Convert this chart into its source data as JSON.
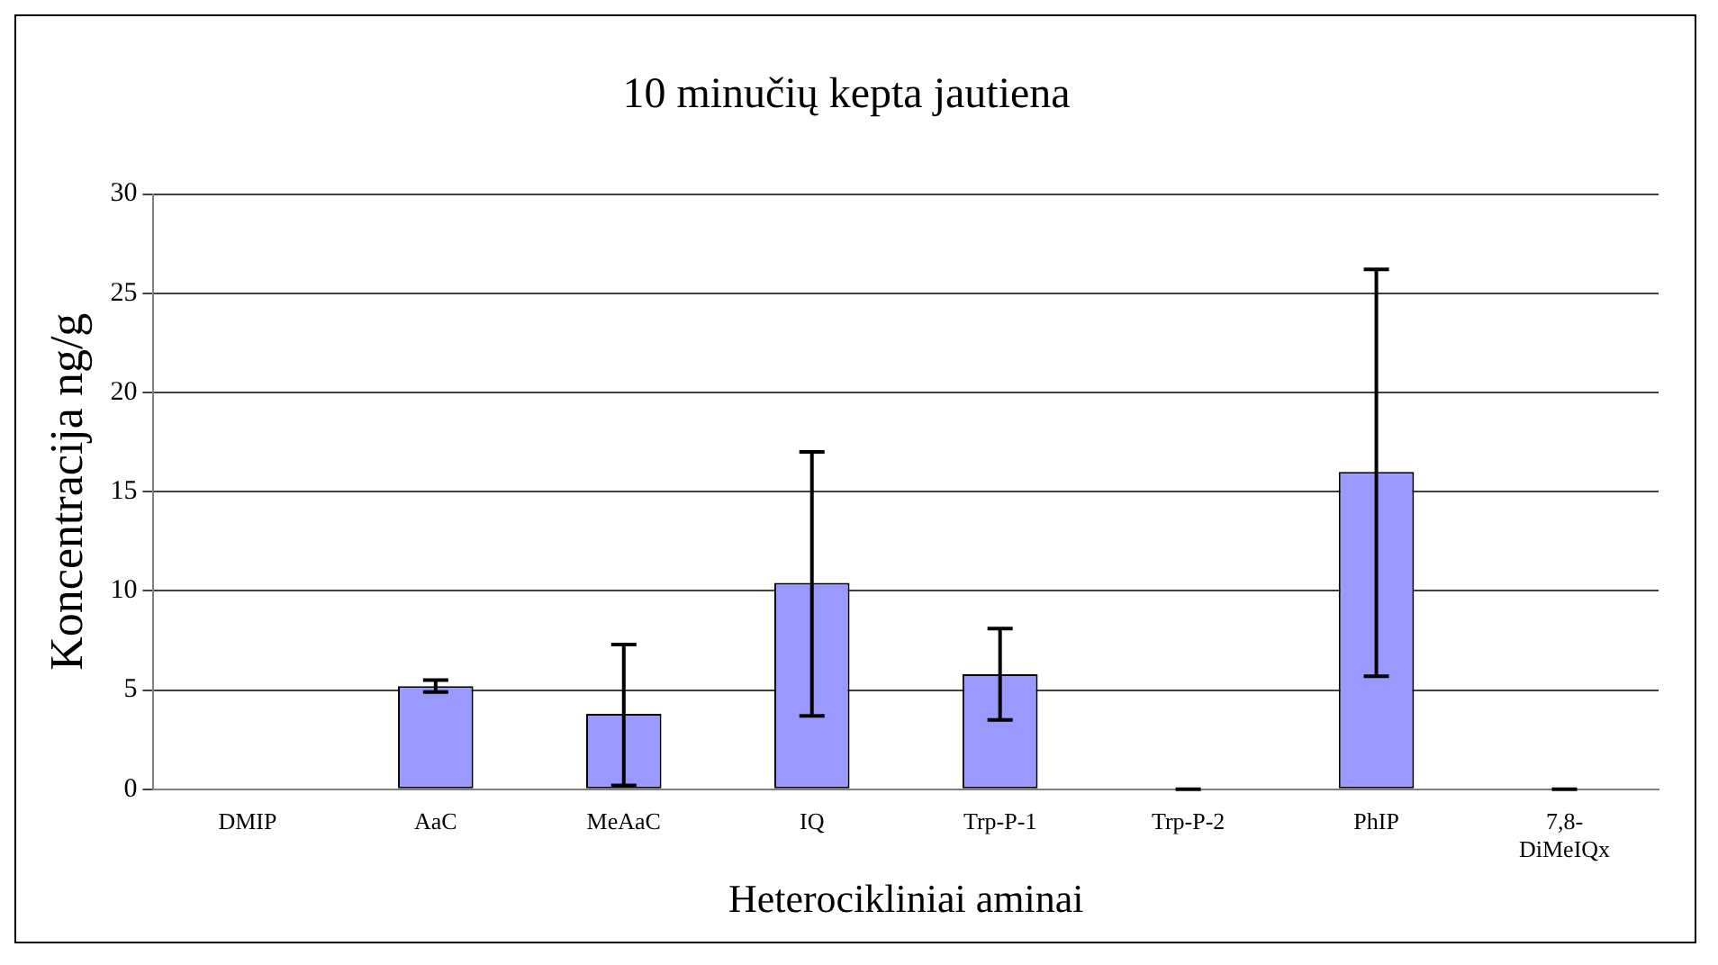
{
  "chart_data": {
    "type": "bar",
    "title": "10 minučių kepta jautiena",
    "xlabel": "Heterocikliniai aminai",
    "ylabel": "Koncentracija ng/g",
    "categories": [
      "DMIP",
      "AaC",
      "MeAaC",
      "IQ",
      "Trp-P-1",
      "Trp-P-2",
      "PhIP",
      "7,8-DiMeIQx"
    ],
    "values": [
      null,
      5.2,
      3.8,
      10.4,
      5.8,
      0,
      16.0,
      0
    ],
    "errors": [
      null,
      [
        4.9,
        5.5
      ],
      [
        0.2,
        7.3
      ],
      [
        3.7,
        17.0
      ],
      [
        3.5,
        8.1
      ],
      0,
      [
        5.7,
        26.2
      ],
      0
    ],
    "color": "#9999ff",
    "ylim": [
      0,
      30
    ],
    "yticks": [
      0,
      5,
      10,
      15,
      20,
      25,
      30
    ],
    "grid": "y"
  }
}
